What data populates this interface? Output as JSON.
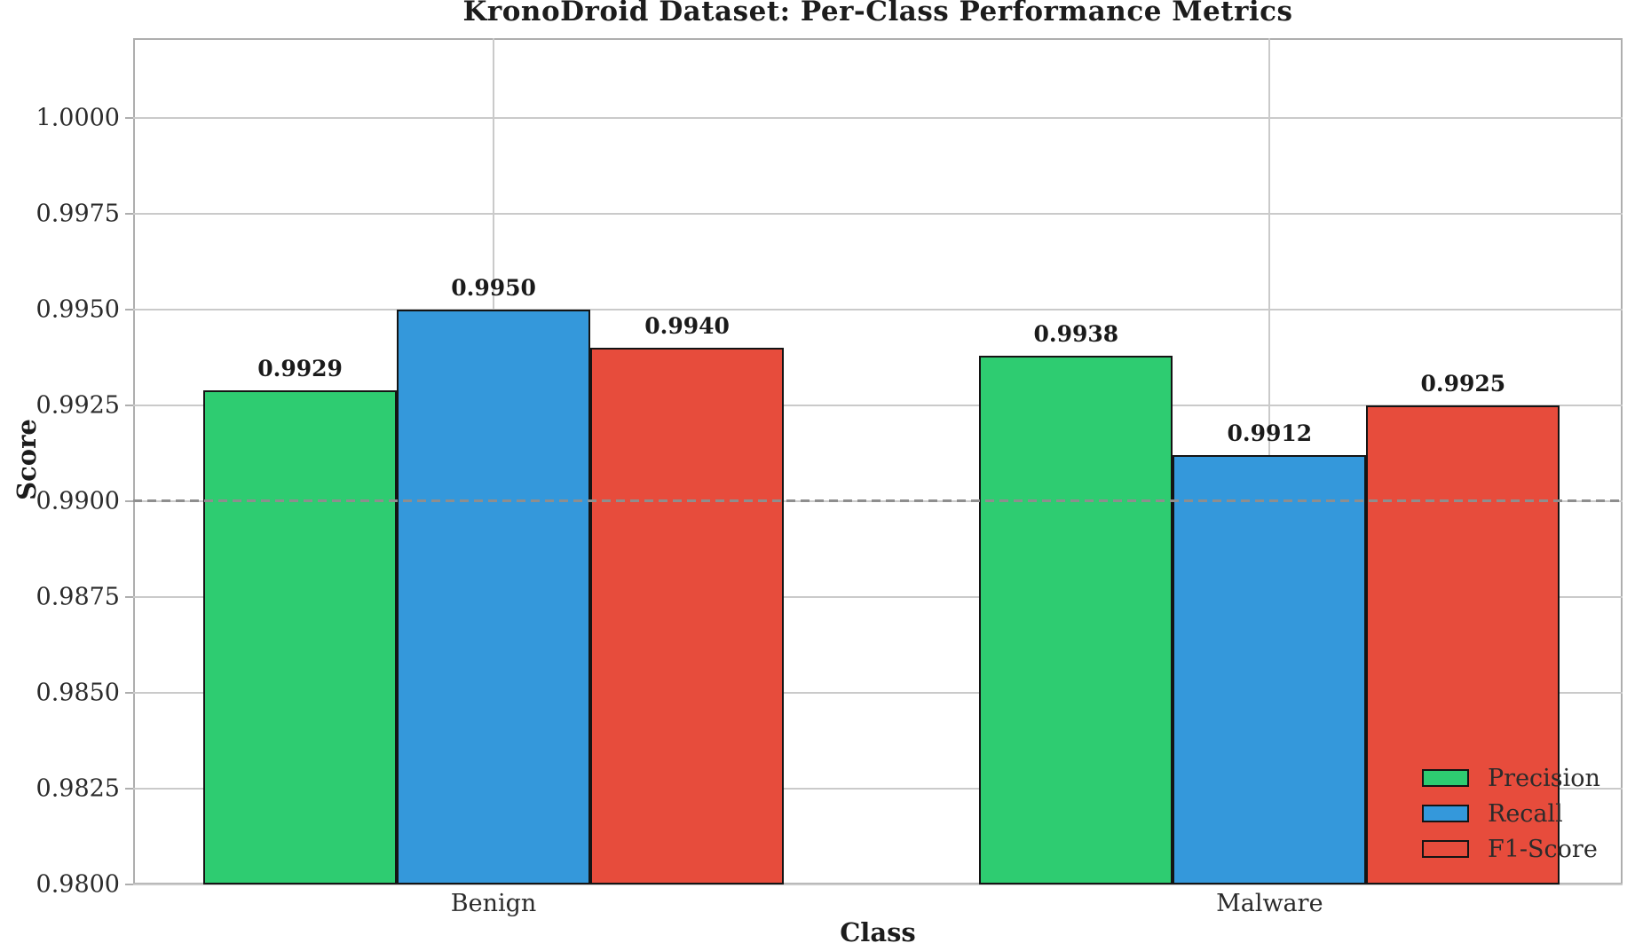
{
  "chart_data": {
    "type": "bar",
    "title": "KronoDroid Dataset: Per-Class Performance Metrics",
    "xlabel": "Class",
    "ylabel": "Score",
    "categories": [
      "Benign",
      "Malware"
    ],
    "series": [
      {
        "name": "Precision",
        "color": "#2ecc71",
        "values": [
          0.9929,
          0.9938
        ]
      },
      {
        "name": "Recall",
        "color": "#3498db",
        "values": [
          0.995,
          0.9912
        ]
      },
      {
        "name": "F1-Score",
        "color": "#e74c3c",
        "values": [
          0.994,
          0.9925
        ]
      }
    ],
    "bar_value_labels": [
      [
        "0.9929",
        "0.9938"
      ],
      [
        "0.9950",
        "0.9912"
      ],
      [
        "0.9940",
        "0.9925"
      ]
    ],
    "ylim": [
      0.98,
      1.00208
    ],
    "yticks": [
      {
        "value": 0.98,
        "label": "0.9800"
      },
      {
        "value": 0.9825,
        "label": "0.9825"
      },
      {
        "value": 0.985,
        "label": "0.9850"
      },
      {
        "value": 0.9875,
        "label": "0.9875"
      },
      {
        "value": 0.99,
        "label": "0.9900"
      },
      {
        "value": 0.9925,
        "label": "0.9925"
      },
      {
        "value": 0.995,
        "label": "0.9950"
      },
      {
        "value": 0.9975,
        "label": "0.9975"
      },
      {
        "value": 1.0,
        "label": "1.0000"
      }
    ],
    "reference_line": {
      "value": 0.99,
      "style": "dashed",
      "color": "#8e8e8e"
    },
    "grid": {
      "horizontal": true,
      "vertical_at_categories": true
    },
    "legend": {
      "position": "lower right",
      "frame": false
    }
  }
}
